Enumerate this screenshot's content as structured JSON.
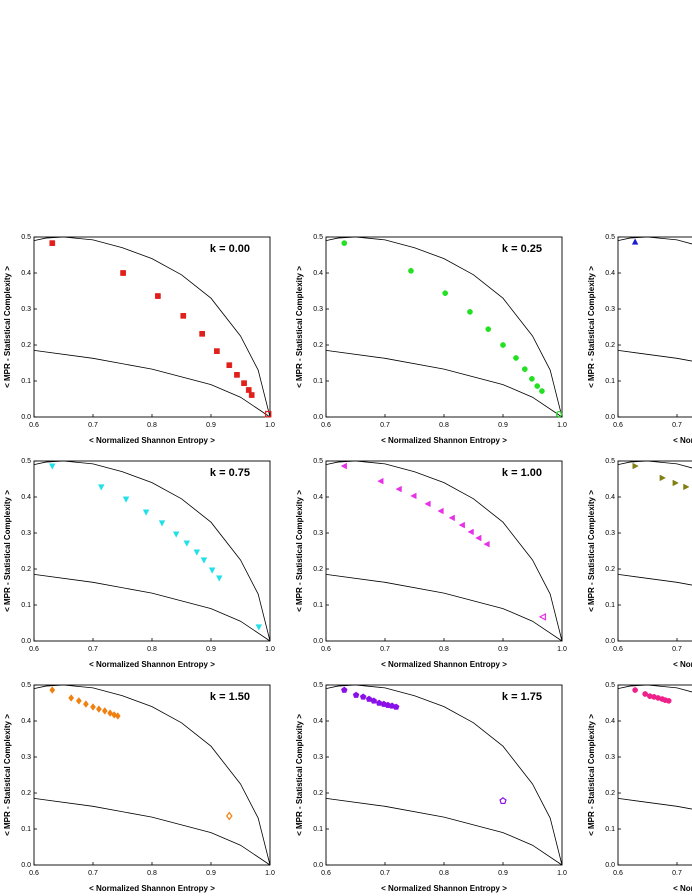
{
  "bounds": [
    {
      "x": [
        0.6,
        0.62,
        0.65,
        0.7,
        0.75,
        0.8,
        0.85,
        0.9,
        0.95,
        0.98,
        1.0
      ],
      "y": [
        0.49,
        0.497,
        0.5,
        0.492,
        0.47,
        0.44,
        0.395,
        0.33,
        0.225,
        0.13,
        0
      ]
    },
    {
      "x": [
        0.6,
        0.7,
        0.8,
        0.9,
        0.95,
        1.0
      ],
      "y": [
        0.185,
        0.163,
        0.133,
        0.09,
        0.055,
        0
      ]
    }
  ],
  "chart_data": [
    {
      "type": "scatter",
      "title": "k = 0.00",
      "xlabel": "< Normalized  Shannon  Entropy >",
      "ylabel": "< MPR - Statistical  Complexity >",
      "marker": "square",
      "color": "#e0201c",
      "hollow": [
        11
      ],
      "x": [
        0.631,
        0.751,
        0.81,
        0.853,
        0.885,
        0.91,
        0.931,
        0.944,
        0.956,
        0.964,
        0.969,
        0.997
      ],
      "values": [
        0.483,
        0.4,
        0.336,
        0.281,
        0.231,
        0.183,
        0.144,
        0.117,
        0.094,
        0.075,
        0.061,
        0.008
      ],
      "xlim": [
        0.6,
        1.0
      ],
      "ylim": [
        0,
        0.5
      ],
      "xticks": [
        0.6,
        0.7,
        0.8,
        0.9,
        {
          "value": 1,
          "label": "1.0"
        }
      ],
      "yticks": [
        {
          "value": 0,
          "label": "0.0"
        },
        0.1,
        0.2,
        0.3,
        0.4,
        0.5
      ]
    },
    {
      "type": "scatter",
      "title": "k = 0.25",
      "xlabel": "< Normalized  Shannon  Entropy >",
      "ylabel": "< MPR - Statistical  Complexity >",
      "marker": "circle",
      "color": "#22e022",
      "hollow": [
        11
      ],
      "x": [
        0.631,
        0.744,
        0.802,
        0.844,
        0.875,
        0.9,
        0.922,
        0.937,
        0.949,
        0.958,
        0.966,
        0.995
      ],
      "values": [
        0.483,
        0.406,
        0.344,
        0.292,
        0.244,
        0.2,
        0.164,
        0.133,
        0.106,
        0.086,
        0.072,
        0.008
      ],
      "xlim": [
        0.6,
        1.0
      ],
      "ylim": [
        0,
        0.5
      ],
      "xticks": [
        0.6,
        0.7,
        0.8,
        0.9,
        {
          "value": 1,
          "label": "1.0"
        }
      ],
      "yticks": [
        {
          "value": 0,
          "label": "0.0"
        },
        0.1,
        0.2,
        0.3,
        0.4,
        0.5
      ]
    },
    {
      "type": "scatter",
      "xlabel": "< Normalized  Shannon  Entropy >",
      "ylabel": "< MPR - Statistical  Complexity >",
      "marker": "triangle-up",
      "color": "#1a1ad8",
      "hollow": [],
      "x": [
        0.629
      ],
      "values": [
        0.486
      ],
      "xlim": [
        0.6,
        1.0
      ],
      "ylim": [
        0,
        0.5
      ],
      "xticks": [
        0.6,
        0.7
      ],
      "yticks": [
        {
          "value": 0,
          "label": "0.0"
        },
        0.1,
        0.2,
        0.3,
        0.4,
        0.5
      ]
    },
    {
      "type": "scatter",
      "title": "k = 0.75",
      "xlabel": "< Normalized  Shannon  Entropy >",
      "ylabel": "< MPR - Statistical  Complexity >",
      "marker": "triangle-down",
      "color": "#22e0e8",
      "hollow": [],
      "x": [
        0.631,
        0.714,
        0.756,
        0.79,
        0.817,
        0.841,
        0.859,
        0.876,
        0.888,
        0.902,
        0.914,
        0.981
      ],
      "values": [
        0.486,
        0.428,
        0.394,
        0.358,
        0.328,
        0.297,
        0.272,
        0.247,
        0.225,
        0.197,
        0.175,
        0.039
      ],
      "xlim": [
        0.6,
        1.0
      ],
      "ylim": [
        0,
        0.5
      ],
      "xticks": [
        0.6,
        0.7,
        0.8,
        0.9,
        {
          "value": 1,
          "label": "1.0"
        }
      ],
      "yticks": [
        {
          "value": 0,
          "label": "0.0"
        },
        0.1,
        0.2,
        0.3,
        0.4,
        0.5
      ]
    },
    {
      "type": "scatter",
      "title": "k = 1.00",
      "xlabel": "< Normalized  Shannon  Entropy >",
      "ylabel": "< MPR - Statistical  Complexity >",
      "marker": "triangle-left",
      "color": "#e830e8",
      "hollow": [
        11
      ],
      "x": [
        0.631,
        0.693,
        0.724,
        0.749,
        0.773,
        0.795,
        0.814,
        0.831,
        0.846,
        0.859,
        0.873,
        0.968
      ],
      "values": [
        0.486,
        0.444,
        0.422,
        0.403,
        0.381,
        0.361,
        0.342,
        0.322,
        0.303,
        0.286,
        0.269,
        0.067
      ],
      "xlim": [
        0.6,
        1.0
      ],
      "ylim": [
        0,
        0.5
      ],
      "xticks": [
        0.6,
        0.7,
        0.8,
        0.9,
        {
          "value": 1,
          "label": "1.0"
        }
      ],
      "yticks": [
        {
          "value": 0,
          "label": "0.0"
        },
        0.1,
        0.2,
        0.3,
        0.4,
        0.5
      ]
    },
    {
      "type": "scatter",
      "xlabel": "< Normalized  Shannon  Entropy >",
      "ylabel": "< MPR - Statistical  Complexity >",
      "marker": "triangle-right",
      "color": "#808010",
      "hollow": [],
      "x": [
        0.629,
        0.675,
        0.697,
        0.715
      ],
      "values": [
        0.486,
        0.453,
        0.439,
        0.428
      ],
      "xlim": [
        0.6,
        1.0
      ],
      "ylim": [
        0,
        0.5
      ],
      "xticks": [
        0.6,
        0.7
      ],
      "yticks": [
        {
          "value": 0,
          "label": "0.0"
        },
        0.1,
        0.2,
        0.3,
        0.4,
        0.5
      ]
    },
    {
      "type": "scatter",
      "title": "k = 1.50",
      "xlabel": "< Normalized  Shannon  Entropy >",
      "ylabel": "< MPR - Statistical  Complexity >",
      "marker": "diamond",
      "color": "#f08010",
      "hollow": [
        10
      ],
      "x": [
        0.631,
        0.663,
        0.676,
        0.688,
        0.7,
        0.71,
        0.72,
        0.729,
        0.736,
        0.742,
        0.931
      ],
      "values": [
        0.486,
        0.464,
        0.456,
        0.447,
        0.439,
        0.433,
        0.428,
        0.422,
        0.417,
        0.414,
        0.136
      ],
      "xlim": [
        0.6,
        1.0
      ],
      "ylim": [
        0,
        0.5
      ],
      "xticks": [
        0.6,
        0.7,
        0.8,
        0.9,
        {
          "value": 1,
          "label": "1.0"
        }
      ],
      "yticks": [
        {
          "value": 0,
          "label": "0.0"
        },
        0.1,
        0.2,
        0.3,
        0.4,
        0.5
      ]
    },
    {
      "type": "scatter",
      "title": "k = 1.75",
      "xlabel": "< Normalized  Shannon  Entropy >",
      "ylabel": "< MPR - Statistical  Complexity >",
      "marker": "hexagon",
      "color": "#8a10e8",
      "hollow": [
        10
      ],
      "x": [
        0.631,
        0.651,
        0.663,
        0.673,
        0.681,
        0.69,
        0.698,
        0.705,
        0.712,
        0.719,
        0.9
      ],
      "values": [
        0.486,
        0.472,
        0.467,
        0.461,
        0.456,
        0.45,
        0.447,
        0.444,
        0.442,
        0.439,
        0.178
      ],
      "xlim": [
        0.6,
        1.0
      ],
      "ylim": [
        0,
        0.5
      ],
      "xticks": [
        0.6,
        0.7,
        0.8,
        0.9,
        {
          "value": 1,
          "label": "1.0"
        }
      ],
      "yticks": [
        {
          "value": 0,
          "label": "0.0"
        },
        0.1,
        0.2,
        0.3,
        0.4,
        0.5
      ]
    },
    {
      "type": "scatter",
      "xlabel": "< Normalized  Shannon  Entropy >",
      "ylabel": "< MPR - Statistical  Complexity >",
      "marker": "circle",
      "color": "#f0208a",
      "hollow": [],
      "x": [
        0.629,
        0.646,
        0.654,
        0.661,
        0.668,
        0.675,
        0.68,
        0.686
      ],
      "values": [
        0.486,
        0.475,
        0.469,
        0.467,
        0.464,
        0.461,
        0.458,
        0.456
      ],
      "xlim": [
        0.6,
        1.0
      ],
      "ylim": [
        0,
        0.5
      ],
      "xticks": [
        0.6,
        0.7
      ],
      "yticks": [
        {
          "value": 0,
          "label": "0.0"
        },
        0.1,
        0.2,
        0.3,
        0.4,
        0.5
      ]
    }
  ]
}
